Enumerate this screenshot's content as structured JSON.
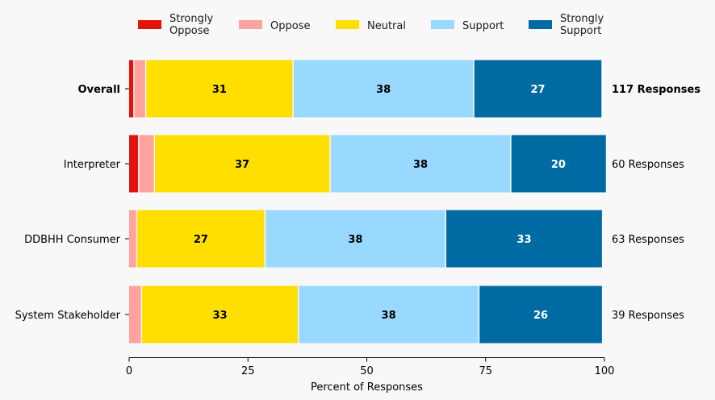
{
  "chart_data": {
    "type": "bar",
    "orientation": "horizontal-stacked",
    "title": "",
    "xlabel": "Percent of Responses",
    "ylabel": "",
    "xlim": [
      0,
      100
    ],
    "xticks": [
      0,
      25,
      50,
      75,
      100
    ],
    "grid": false,
    "legend_position": "top",
    "legend": [
      {
        "name": "Strongly Oppose",
        "lines": [
          "Strongly",
          "Oppose"
        ],
        "color": "#e3120b"
      },
      {
        "name": "Oppose",
        "lines": [
          "Oppose"
        ],
        "color": "#ffa19c"
      },
      {
        "name": "Neutral",
        "lines": [
          "Neutral"
        ],
        "color": "#ffdf00"
      },
      {
        "name": "Support",
        "lines": [
          "Support"
        ],
        "color": "#99d9ff"
      },
      {
        "name": "Strongly Support",
        "lines": [
          "Strongly",
          "Support"
        ],
        "color": "#006ba2"
      }
    ],
    "categories": [
      "Overall",
      "Interpreter",
      "DDBHH Consumer",
      "System Stakeholder"
    ],
    "category_bold": [
      true,
      false,
      false,
      false
    ],
    "series": [
      {
        "name": "Strongly Oppose",
        "values": [
          1,
          2,
          0,
          0
        ]
      },
      {
        "name": "Oppose",
        "values": [
          2.5,
          3.3,
          1.6,
          2.6
        ]
      },
      {
        "name": "Neutral",
        "values": [
          31,
          37,
          27,
          33
        ]
      },
      {
        "name": "Support",
        "values": [
          38,
          38,
          38,
          38
        ]
      },
      {
        "name": "Strongly Support",
        "values": [
          27,
          20,
          33,
          26
        ]
      }
    ],
    "segment_labels": [
      [
        null,
        null,
        "31",
        "38",
        "27"
      ],
      [
        null,
        null,
        "37",
        "38",
        "20"
      ],
      [
        null,
        null,
        "27",
        "38",
        "33"
      ],
      [
        null,
        null,
        "33",
        "38",
        "26"
      ]
    ],
    "label_colors": [
      "#000000",
      "#000000",
      "#000000",
      "#000000",
      "#ffffff"
    ],
    "right_labels": [
      "117 Responses",
      "60 Responses",
      "63 Responses",
      "39 Responses"
    ]
  }
}
